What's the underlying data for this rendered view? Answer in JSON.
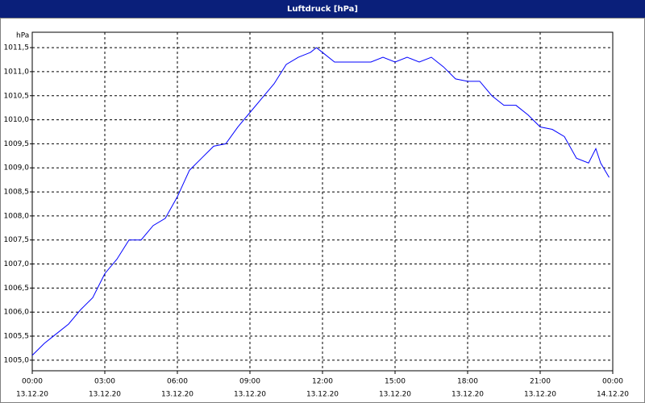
{
  "chart_data": {
    "type": "line",
    "title": "Luftdruck [hPa]",
    "y_unit": "hPa",
    "x": [
      0,
      0.5,
      1,
      1.5,
      2,
      2.5,
      3,
      3.5,
      4,
      4.5,
      5,
      5.5,
      6,
      6.5,
      7,
      7.5,
      8,
      8.5,
      9,
      9.5,
      10,
      10.5,
      11,
      11.5,
      11.75,
      12,
      12.5,
      13,
      14,
      14.5,
      15,
      15.5,
      16,
      16.5,
      17,
      17.5,
      18,
      18.5,
      19,
      19.5,
      20,
      20.5,
      21,
      21.5,
      22,
      22.5,
      23,
      23.3,
      23.5,
      23.85
    ],
    "series": [
      {
        "name": "Luftdruck",
        "color": "#0000ff",
        "values": [
          1005.1,
          1005.35,
          1005.55,
          1005.75,
          1006.05,
          1006.3,
          1006.8,
          1007.1,
          1007.5,
          1007.5,
          1007.8,
          1007.95,
          1008.4,
          1008.95,
          1009.2,
          1009.45,
          1009.5,
          1009.85,
          1010.15,
          1010.45,
          1010.75,
          1011.15,
          1011.3,
          1011.4,
          1011.5,
          1011.4,
          1011.2,
          1011.2,
          1011.2,
          1011.3,
          1011.2,
          1011.3,
          1011.2,
          1011.3,
          1011.1,
          1010.85,
          1010.8,
          1010.8,
          1010.5,
          1010.3,
          1010.3,
          1010.1,
          1009.85,
          1009.8,
          1009.65,
          1009.2,
          1009.1,
          1009.4,
          1009.1,
          1008.8
        ]
      }
    ],
    "xlim": [
      0,
      24
    ],
    "xticks": [
      {
        "value": 0,
        "label": "00:00"
      },
      {
        "value": 3,
        "label": "03:00"
      },
      {
        "value": 6,
        "label": "06:00"
      },
      {
        "value": 9,
        "label": "09:00"
      },
      {
        "value": 12,
        "label": "12:00"
      },
      {
        "value": 15,
        "label": "15:00"
      },
      {
        "value": 18,
        "label": "18:00"
      },
      {
        "value": 21,
        "label": "21:00"
      },
      {
        "value": 24,
        "label": "00:00"
      }
    ],
    "xtick_dates": [
      "13.12.20",
      "13.12.20",
      "13.12.20",
      "13.12.20",
      "13.12.20",
      "13.12.20",
      "13.12.20",
      "13.12.20",
      "14.12.20"
    ],
    "ylim": [
      1004.78,
      1011.82
    ],
    "yticks": [
      {
        "value": 1005,
        "label": "1005,0"
      },
      {
        "value": 1005.5,
        "label": "1005,5"
      },
      {
        "value": 1006,
        "label": "1006,0"
      },
      {
        "value": 1006.5,
        "label": "1006,5"
      },
      {
        "value": 1007,
        "label": "1007,0"
      },
      {
        "value": 1007.5,
        "label": "1007,5"
      },
      {
        "value": 1008,
        "label": "1008,0"
      },
      {
        "value": 1008.5,
        "label": "1008,5"
      },
      {
        "value": 1009,
        "label": "1009,0"
      },
      {
        "value": 1009.5,
        "label": "1009,5"
      },
      {
        "value": 1010,
        "label": "1010,0"
      },
      {
        "value": 1010.5,
        "label": "1010,5"
      },
      {
        "value": 1011,
        "label": "1011,0"
      },
      {
        "value": 1011.5,
        "label": "1011,5"
      }
    ],
    "grid": true
  }
}
